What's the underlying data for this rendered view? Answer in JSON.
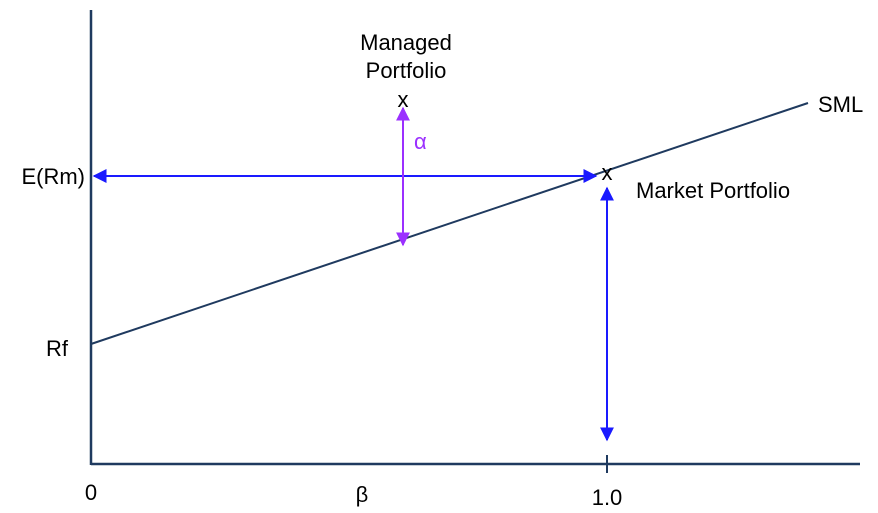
{
  "labels": {
    "sml": "SML",
    "erm": "E(Rm)",
    "rf": "Rf",
    "zero": "0",
    "beta": "β",
    "one": "1.0",
    "managed_line1": "Managed",
    "managed_line2": "Portfolio",
    "market": "Market Portfolio",
    "alpha": "α",
    "managed_marker": "x",
    "market_marker": "x"
  },
  "colors": {
    "axis": "#1f3a5f",
    "sml_line": "#1f3a5f",
    "arrow_blue": "#1a1aff",
    "arrow_alpha": "#9b30ff",
    "text": "#000000"
  }
}
